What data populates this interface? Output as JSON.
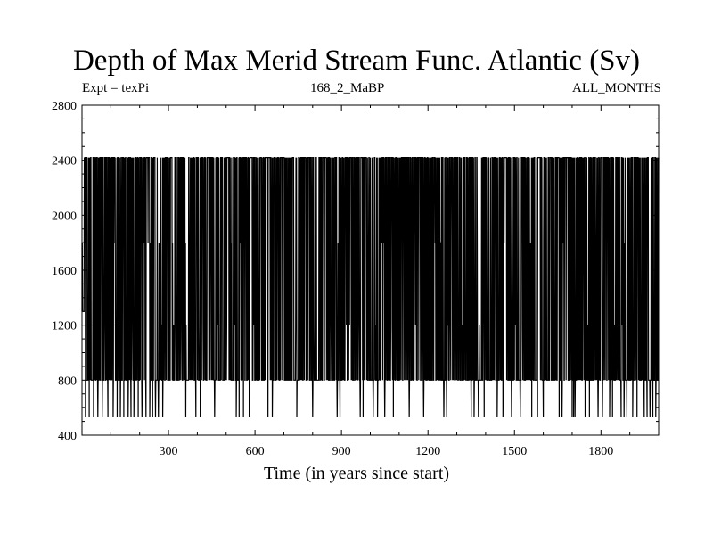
{
  "chart_data": {
    "type": "line",
    "title": "Depth of Max Merid Stream Func. Atlantic (Sv)",
    "subtitle_left": "Expt = texPi",
    "subtitle_center": "168_2_MaBP",
    "subtitle_right": "ALL_MONTHS",
    "xlabel": "Time (in years since start)",
    "ylabel": "",
    "xlim": [
      0,
      2000
    ],
    "ylim": [
      400,
      2800
    ],
    "xticks": [
      300,
      600,
      900,
      1200,
      1500,
      1800
    ],
    "yticks": [
      400,
      800,
      1200,
      1600,
      2000,
      2400,
      2800
    ],
    "grid": false,
    "series": [
      {
        "color": "#000000",
        "levels": [
          530,
          800,
          1200,
          1800,
          2420
        ],
        "dominant_range": [
          800,
          2420
        ],
        "x_start": 0,
        "x_end": 2000,
        "dip_to_530_years": [
          12,
          25,
          40,
          55,
          70,
          90,
          108,
          122,
          133,
          145,
          160,
          170,
          180,
          195,
          208,
          222,
          235,
          245,
          255,
          265,
          280,
          360,
          395,
          410,
          460,
          535,
          545,
          560,
          580,
          645,
          660,
          745,
          800,
          885,
          895,
          965,
          975,
          1010,
          1025,
          1050,
          1080,
          1135,
          1185,
          1255,
          1265,
          1350,
          1360,
          1375,
          1395,
          1440,
          1460,
          1490,
          1520,
          1560,
          1580,
          1600,
          1655,
          1665,
          1700,
          1705,
          1710,
          1745,
          1760,
          1790,
          1805,
          1830,
          1840,
          1870,
          1880,
          1890,
          1910,
          1925,
          1950,
          1960,
          1970,
          1980,
          1990
        ]
      }
    ]
  }
}
